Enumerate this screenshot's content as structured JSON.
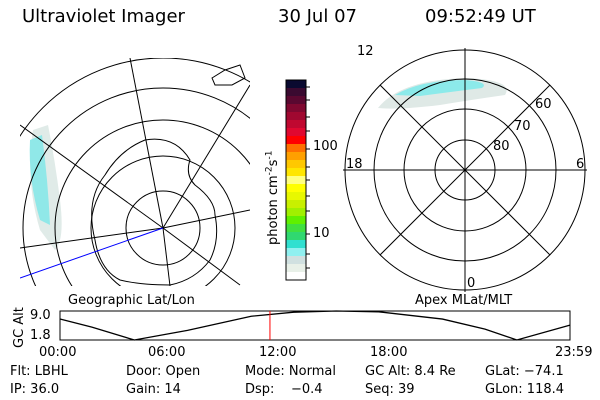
{
  "header": {
    "instrument": "Ultraviolet Imager",
    "date": "30 Jul 07",
    "time": "09:52:49 UT"
  },
  "left_map": {
    "label": "Geographic Lat/Lon"
  },
  "right_map": {
    "label": "Apex MLat/MLT",
    "mlt_labels": [
      "12",
      "6",
      "0",
      "18"
    ],
    "lat_labels": [
      "60",
      "70",
      "80"
    ]
  },
  "colorbar": {
    "label": "photon cm-2s-1",
    "unit_main": "photon cm",
    "unit_exp1": "-2",
    "unit_s": "s",
    "unit_exp2": "-1",
    "tick_labels": [
      "100",
      "10"
    ],
    "colors": [
      "#0a0a30",
      "#3a0a30",
      "#5a0830",
      "#800830",
      "#a00830",
      "#c00830",
      "#e00830",
      "#ff0000",
      "#ff7000",
      "#ffa000",
      "#ffc800",
      "#ffe600",
      "#ffff80",
      "#ffff00",
      "#e8f800",
      "#c8f000",
      "#a0f000",
      "#60f000",
      "#40e040",
      "#30d870",
      "#30e0d0",
      "#90f0f0",
      "#d0e0e0",
      "#e8f0e8",
      "#ffffff"
    ]
  },
  "chart_data": {
    "type": "line",
    "ylabel": "GC Alt",
    "y_tick_labels": [
      "9.0",
      "1.8"
    ],
    "ylim": [
      1.8,
      9.0
    ],
    "x_tick_labels": [
      "00:00",
      "06:00",
      "12:00",
      "18:00",
      "23:59"
    ],
    "x_hours": [
      0,
      1.5,
      3.5,
      6,
      9,
      11,
      13,
      15,
      18,
      20,
      21.5,
      24
    ],
    "gc_alt": [
      7.0,
      5.0,
      1.8,
      4.2,
      7.7,
      8.7,
      9.0,
      8.8,
      7.0,
      4.5,
      1.8,
      5.5
    ],
    "current_time_hours": 9.88,
    "cursor_color": "#ff0000"
  },
  "status": {
    "flt": "Flt: LBHL",
    "door": "Door: Open",
    "mode": "Mode: Normal",
    "gc_alt": "GC Alt: 8.4 Re",
    "glat": "GLat: −74.1",
    "ip": "IP: 36.0",
    "gain": "Gain: 14",
    "dsp": "Dsp:    −0.4",
    "seq": "Seq: 39",
    "glon": "GLon: 118.4"
  }
}
